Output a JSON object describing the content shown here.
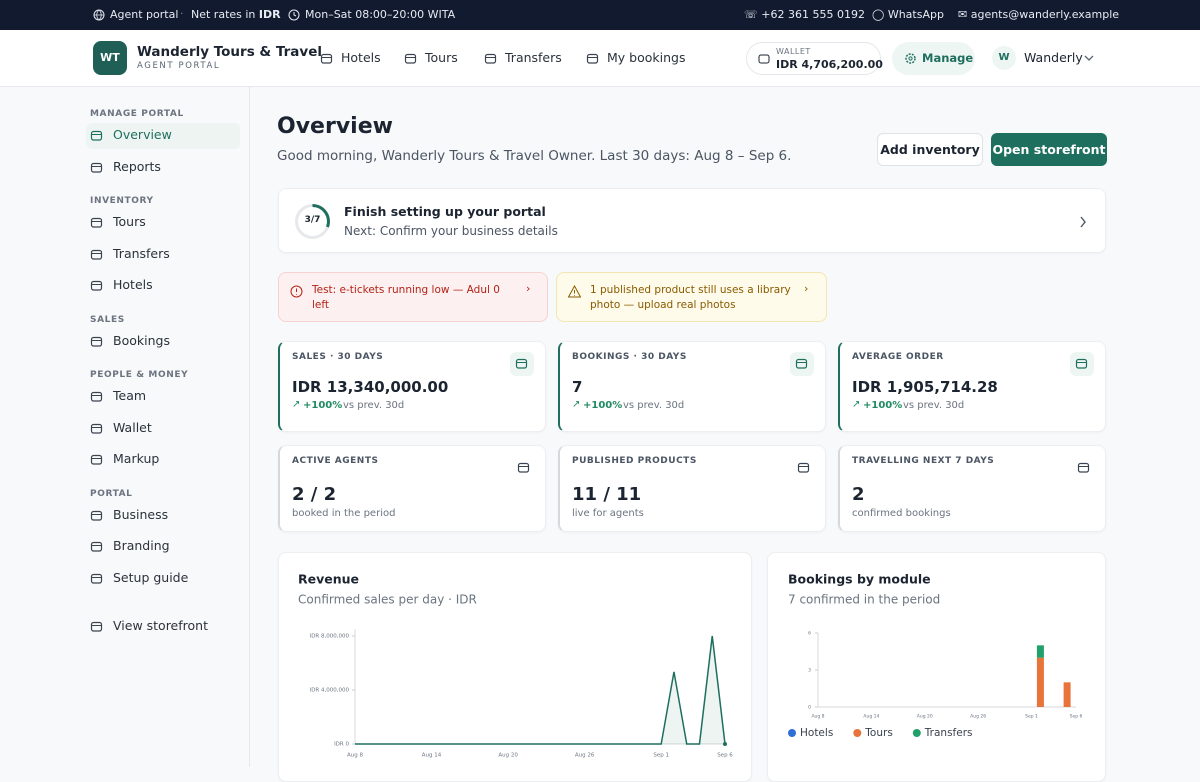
{
  "topbar": {
    "portal": "Agent portal",
    "rates": "Net rates in",
    "currency": "IDR",
    "hours": "Mon–Sat 08:00–20:00 WITA",
    "phone": "+62 361 555 0192",
    "whatsapp": "WhatsApp",
    "email": "agents@wanderly.example"
  },
  "header": {
    "logo": "WT",
    "brand": "Wanderly Tours & Travel",
    "tagline": "AGENT PORTAL",
    "nav": [
      "Hotels",
      "Tours",
      "Transfers",
      "My bookings"
    ],
    "wallet_label": "WALLET",
    "wallet_amount": "IDR 4,706,200.00",
    "manage": "Manage",
    "avatar": "W",
    "user": "Wanderly"
  },
  "sidebar": {
    "sections": [
      {
        "title": "MANAGE PORTAL",
        "items": [
          "Overview",
          "Reports"
        ]
      },
      {
        "title": "INVENTORY",
        "items": [
          "Tours",
          "Transfers",
          "Hotels"
        ]
      },
      {
        "title": "SALES",
        "items": [
          "Bookings"
        ]
      },
      {
        "title": "PEOPLE & MONEY",
        "items": [
          "Team",
          "Wallet",
          "Markup"
        ]
      },
      {
        "title": "PORTAL",
        "items": [
          "Business",
          "Branding",
          "Setup guide"
        ]
      }
    ],
    "footer": "View storefront"
  },
  "page": {
    "title": "Overview",
    "subtitle": "Good morning, Wanderly Tours & Travel Owner. Last 30 days: Aug 8 – Sep 6.",
    "buttons": [
      "Add inventory",
      "Open storefront"
    ]
  },
  "setup": {
    "progress": "3/7",
    "title": "Finish setting up your portal",
    "next": "Next: Confirm your business details"
  },
  "alerts": [
    "Test: e-tickets running low — Adul 0 left",
    "1 published product still uses a library photo — upload real photos"
  ],
  "stats": [
    {
      "label": "SALES · 30 DAYS",
      "value": "IDR 13,340,000.00",
      "change": "+100%",
      "note": "vs prev. 30d"
    },
    {
      "label": "BOOKINGS · 30 DAYS",
      "value": "7",
      "change": "+100%",
      "note": "vs prev. 30d"
    },
    {
      "label": "AVERAGE ORDER",
      "value": "IDR 1,905,714.28",
      "change": "+100%",
      "note": "vs prev. 30d"
    },
    {
      "label": "ACTIVE AGENTS",
      "value": "2 / 2",
      "note": "booked in the period"
    },
    {
      "label": "PUBLISHED PRODUCTS",
      "value": "11 / 11",
      "note": "live for agents"
    },
    {
      "label": "TRAVELLING NEXT 7 DAYS",
      "value": "2",
      "note": "confirmed bookings"
    }
  ],
  "chart_data": [
    {
      "type": "line",
      "title": "Revenue",
      "subtitle": "Confirmed sales per day · IDR",
      "color": "#1f6f5f",
      "categories": [
        "Aug 8",
        null,
        null,
        null,
        null,
        null,
        "Aug 14",
        null,
        null,
        null,
        null,
        null,
        "Aug 20",
        null,
        null,
        null,
        null,
        null,
        "Aug 26",
        null,
        null,
        null,
        null,
        null,
        "Sep 1",
        null,
        null,
        null,
        null,
        "Sep 6"
      ],
      "values": [
        0,
        0,
        0,
        0,
        0,
        0,
        0,
        0,
        0,
        0,
        0,
        0,
        0,
        0,
        0,
        0,
        0,
        0,
        0,
        0,
        0,
        0,
        0,
        0,
        0,
        5340000,
        0,
        0,
        8000000,
        0
      ],
      "ylim": [
        0,
        8500000
      ],
      "yticks": [
        {
          "value": 0,
          "label": "IDR 0"
        },
        {
          "value": 4000000,
          "label": "IDR 4,000,000"
        },
        {
          "value": 8000000,
          "label": "IDR 8,000,000"
        }
      ]
    },
    {
      "type": "bar",
      "stacked": true,
      "title": "Bookings by module",
      "subtitle": "7 confirmed in the period",
      "legend": "bottom",
      "categories": [
        "Aug 8",
        null,
        null,
        null,
        null,
        null,
        "Aug 14",
        null,
        null,
        null,
        null,
        null,
        "Aug 20",
        null,
        null,
        null,
        null,
        null,
        "Aug 26",
        null,
        null,
        null,
        null,
        null,
        "Sep 1",
        null,
        null,
        null,
        null,
        "Sep 6"
      ],
      "series": [
        {
          "name": "Hotels",
          "color": "#2f6fd6",
          "values": [
            0,
            0,
            0,
            0,
            0,
            0,
            0,
            0,
            0,
            0,
            0,
            0,
            0,
            0,
            0,
            0,
            0,
            0,
            0,
            0,
            0,
            0,
            0,
            0,
            0,
            0,
            0,
            0,
            0,
            0
          ]
        },
        {
          "name": "Tours",
          "color": "#e8743b",
          "values": [
            0,
            0,
            0,
            0,
            0,
            0,
            0,
            0,
            0,
            0,
            0,
            0,
            0,
            0,
            0,
            0,
            0,
            0,
            0,
            0,
            0,
            0,
            0,
            0,
            0,
            4,
            0,
            0,
            2,
            0
          ]
        },
        {
          "name": "Transfers",
          "color": "#22a06b",
          "values": [
            0,
            0,
            0,
            0,
            0,
            0,
            0,
            0,
            0,
            0,
            0,
            0,
            0,
            0,
            0,
            0,
            0,
            0,
            0,
            0,
            0,
            0,
            0,
            0,
            0,
            1,
            0,
            0,
            0,
            0
          ]
        }
      ],
      "ylim": [
        0,
        6
      ],
      "yticks": [
        0,
        3,
        6
      ]
    }
  ]
}
